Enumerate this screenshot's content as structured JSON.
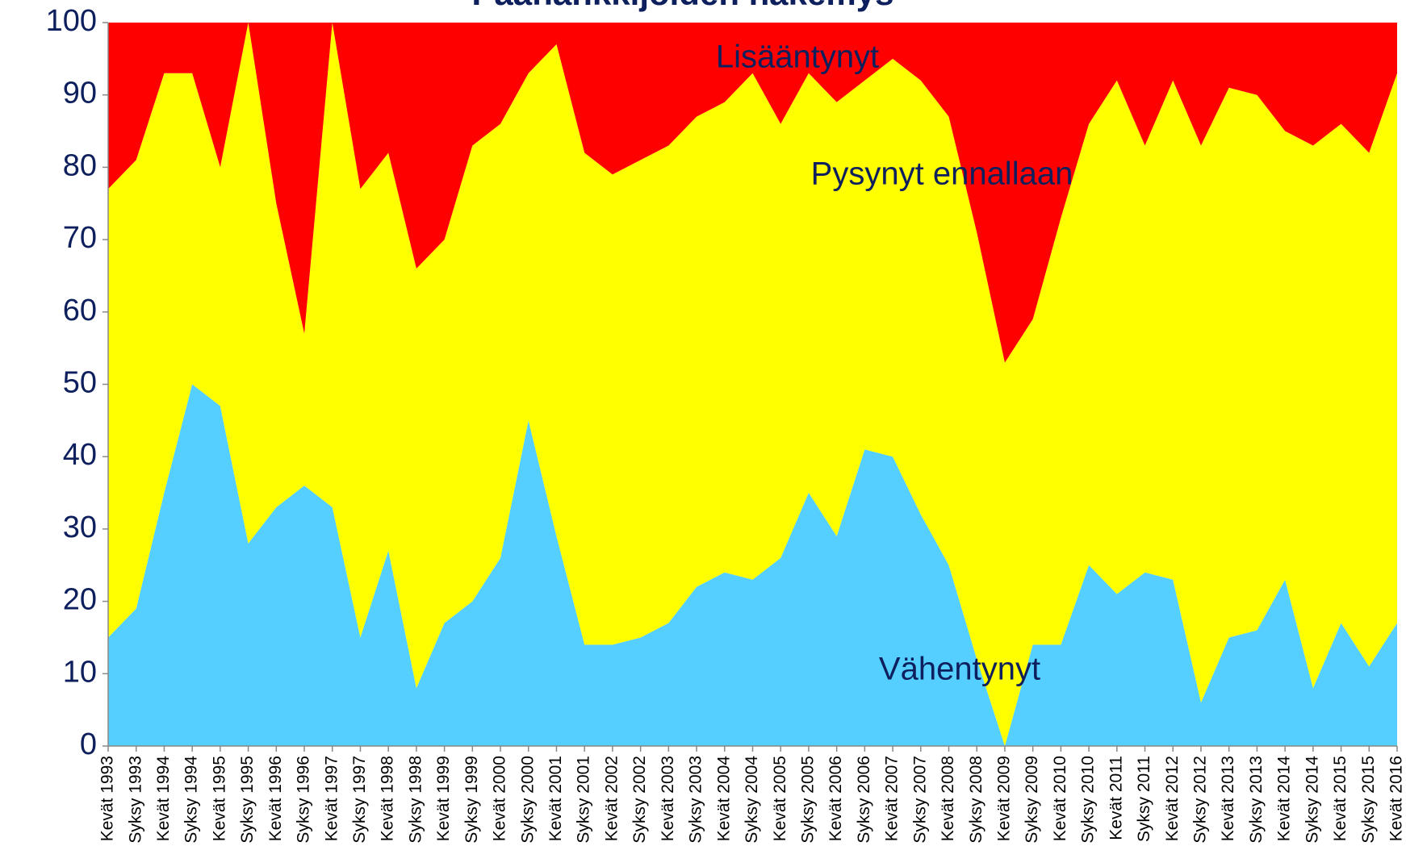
{
  "chart_data": {
    "type": "stacked_area",
    "title": "Päähankkijoiden näkemys",
    "categories": [
      "Kevät 1993",
      "Syksy 1993",
      "Kevät 1994",
      "Syksy 1994",
      "Kevät 1995",
      "Syksy 1995",
      "Kevät 1996",
      "Syksy 1996",
      "Kevät 1997",
      "Syksy 1997",
      "Kevät 1998",
      "Syksy 1998",
      "Kevät 1999",
      "Syksy 1999",
      "Kevät 2000",
      "Syksy 2000",
      "Kevät 2001",
      "Syksy 2001",
      "Kevät 2002",
      "Syksy 2002",
      "Kevät 2003",
      "Syksy 2003",
      "Kevät 2004",
      "Syksy 2004",
      "Kevät 2005",
      "Syksy 2005",
      "Kevät 2006",
      "Syksy 2006",
      "Kevät 2007",
      "Syksy 2007",
      "Kevät 2008",
      "Syksy 2008",
      "Kevät 2009",
      "Syksy 2009",
      "Kevät 2010",
      "Syksy 2010",
      "Kevät 2011",
      "Syksy 2011",
      "Kevät 2012",
      "Syksy 2012",
      "Kevät 2013",
      "Syksy 2013",
      "Kevät 2014",
      "Syksy 2014",
      "Kevät 2015",
      "Syksy 2015",
      "Kevät 2016"
    ],
    "series": [
      {
        "name": "Lisääntynyt",
        "color": "#55cfff",
        "values": [
          15,
          19,
          35,
          50,
          47,
          28,
          33,
          36,
          33,
          15,
          27,
          8,
          17,
          20,
          26,
          45,
          29,
          14,
          14,
          15,
          17,
          22,
          24,
          23,
          26,
          35,
          29,
          41,
          40,
          32,
          25,
          12,
          0,
          14,
          14,
          25,
          21,
          24,
          23,
          6,
          15,
          16,
          23,
          8,
          17,
          11,
          17
        ]
      },
      {
        "name": "Pysynyt ennallaan",
        "color": "#ffff00",
        "values": [
          62,
          62,
          58,
          43,
          33,
          72,
          42,
          21,
          67,
          62,
          55,
          58,
          53,
          63,
          60,
          48,
          68,
          68,
          65,
          66,
          66,
          65,
          65,
          70,
          60,
          58,
          60,
          51,
          55,
          60,
          62,
          59,
          53,
          45,
          59,
          61,
          71,
          59,
          69,
          77,
          76,
          74,
          62,
          75,
          69,
          71,
          76
        ]
      },
      {
        "name": "Vähentynyt",
        "color": "#ff0000",
        "values": [
          23,
          19,
          7,
          7,
          20,
          0,
          25,
          43,
          0,
          23,
          18,
          34,
          30,
          17,
          14,
          7,
          3,
          18,
          21,
          19,
          17,
          13,
          11,
          7,
          14,
          7,
          11,
          8,
          5,
          8,
          13,
          29,
          47,
          41,
          27,
          14,
          8,
          17,
          8,
          17,
          9,
          10,
          15,
          17,
          14,
          18,
          7
        ]
      }
    ],
    "ylim": [
      0,
      100
    ],
    "yticks": [
      0,
      10,
      20,
      30,
      40,
      50,
      60,
      70,
      80,
      90,
      100
    ]
  }
}
